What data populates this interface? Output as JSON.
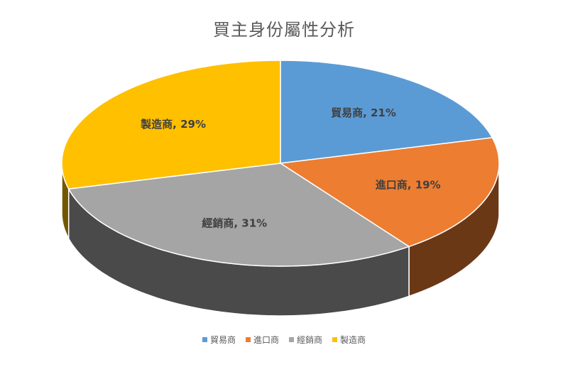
{
  "chart_data": {
    "type": "pie",
    "title": "買主身份屬性分析",
    "categories": [
      "貿易商",
      "進口商",
      "經銷商",
      "製造商"
    ],
    "values": [
      21,
      19,
      31,
      29
    ],
    "value_unit": "%",
    "data_labels": [
      "貿易商, 21%",
      "進口商, 19%",
      "經銷商, 31%",
      "製造商, 29%"
    ],
    "colors": [
      "#5B9BD5",
      "#ED7D31",
      "#A5A5A5",
      "#FFC000"
    ],
    "legend_position": "bottom",
    "style": "3d"
  }
}
